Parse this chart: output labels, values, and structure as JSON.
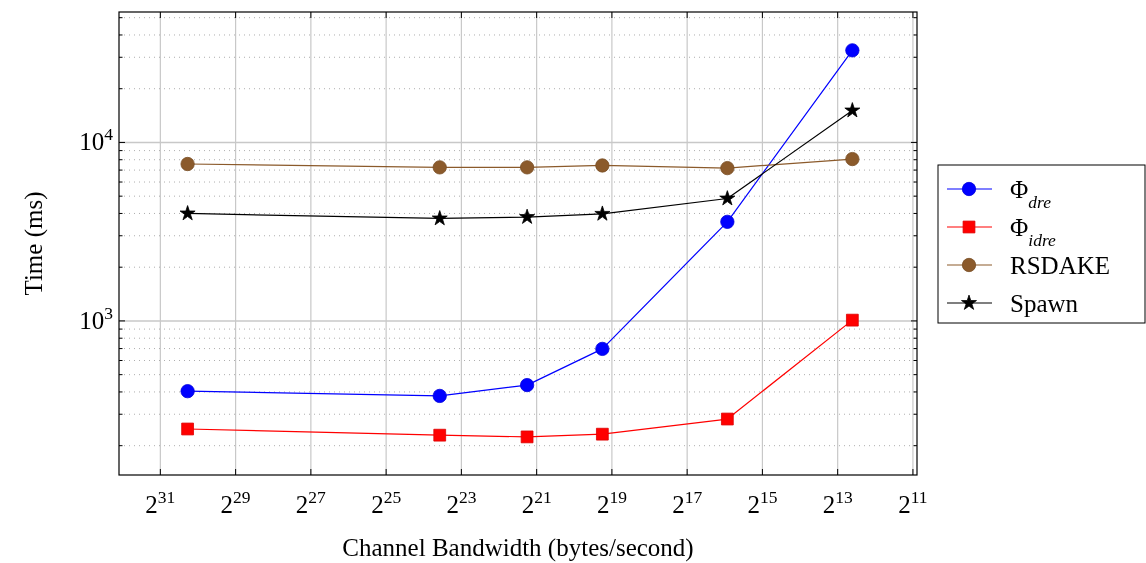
{
  "chart_data": {
    "type": "line",
    "xlabel": "Channel Bandwidth (bytes/second)",
    "ylabel": "Time (ms)",
    "log": "xy",
    "grid": true,
    "legend": "right",
    "x": [
      1300000000,
      12500000,
      2500000,
      625000,
      62500,
      6250
    ],
    "xlim": [
      4600000000,
      1900
    ],
    "xticks": [
      {
        "value": 2147483648,
        "label": "2$^{31}$"
      },
      {
        "value": 536870912,
        "label": "2$^{29}$"
      },
      {
        "value": 134217728,
        "label": "2$^{27}$"
      },
      {
        "value": 33554432,
        "label": "2$^{25}$"
      },
      {
        "value": 8388608,
        "label": "2$^{23}$"
      },
      {
        "value": 2097152,
        "label": "2$^{21}$"
      },
      {
        "value": 524288,
        "label": "2$^{19}$"
      },
      {
        "value": 131072,
        "label": "2$^{17}$"
      },
      {
        "value": 32768,
        "label": "2$^{15}$"
      },
      {
        "value": 8192,
        "label": "2$^{13}$"
      },
      {
        "value": 2048,
        "label": "2$^{11}$"
      }
    ],
    "ylim": [
      137,
      53800
    ],
    "yticks": [
      {
        "value": 200,
        "label": null
      },
      {
        "value": 300,
        "label": null
      },
      {
        "value": 400,
        "label": null
      },
      {
        "value": 500,
        "label": null
      },
      {
        "value": 600,
        "label": null
      },
      {
        "value": 700,
        "label": null
      },
      {
        "value": 800,
        "label": null
      },
      {
        "value": 900,
        "label": null
      },
      {
        "value": 1000,
        "label": "10$^{3}$"
      },
      {
        "value": 2000,
        "label": null
      },
      {
        "value": 3000,
        "label": null
      },
      {
        "value": 4000,
        "label": null
      },
      {
        "value": 5000,
        "label": null
      },
      {
        "value": 6000,
        "label": null
      },
      {
        "value": 7000,
        "label": null
      },
      {
        "value": 8000,
        "label": null
      },
      {
        "value": 9000,
        "label": null
      },
      {
        "value": 10000,
        "label": "10$^{4}$"
      },
      {
        "value": 20000,
        "label": null
      },
      {
        "value": 30000,
        "label": null
      },
      {
        "value": 40000,
        "label": null
      },
      {
        "value": 50000,
        "label": null
      }
    ],
    "series": [
      {
        "name": "Φ$_{dre}$",
        "color": "#0000ff",
        "marker": "circle",
        "values": [
          404,
          380,
          437,
          697,
          3590,
          32800
        ]
      },
      {
        "name": "Φ$_{idre}$",
        "color": "#ff0000",
        "marker": "square",
        "values": [
          248,
          229,
          224,
          232,
          282,
          1010
        ]
      },
      {
        "name": "RSDAKE",
        "color": "#8b5a2b",
        "marker": "circle",
        "values": [
          7570,
          7250,
          7250,
          7430,
          7180,
          8070
        ]
      },
      {
        "name": "Spawn",
        "color": "#000000",
        "marker": "star",
        "values": [
          4000,
          3750,
          3820,
          3980,
          4850,
          15100
        ]
      }
    ]
  }
}
